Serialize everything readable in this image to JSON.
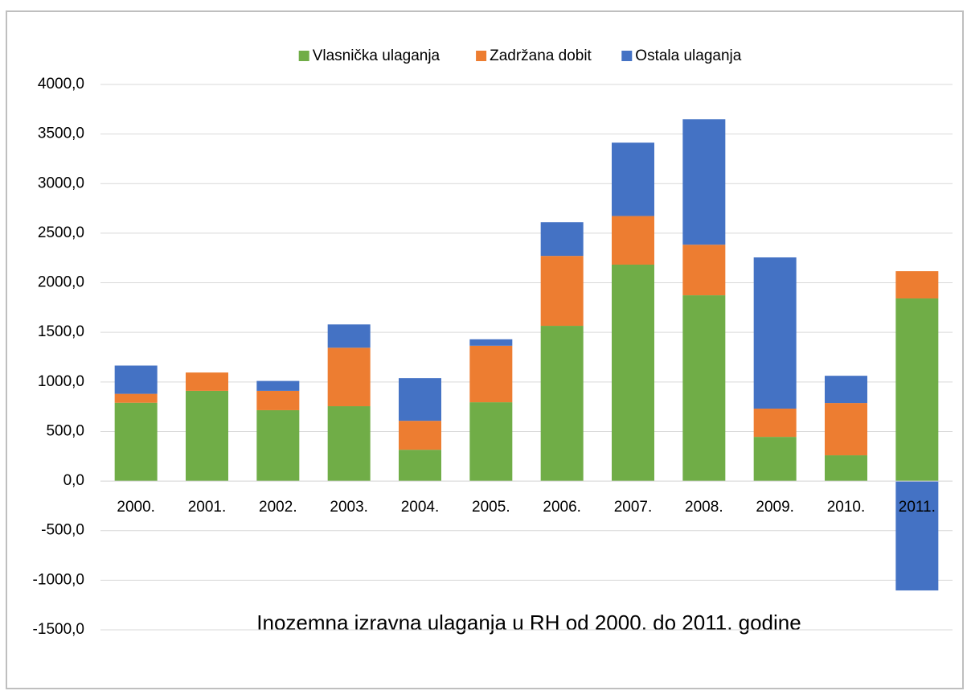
{
  "chart_data": {
    "type": "stacked_bar",
    "title": "Inozemna izravna ulaganja u RH od 2000. do 2011. godine",
    "categories": [
      "2000.",
      "2001.",
      "2002.",
      "2003.",
      "2004.",
      "2005.",
      "2006.",
      "2007.",
      "2008.",
      "2009.",
      "2010.",
      "2011."
    ],
    "series": [
      {
        "name": "Vlasnička ulaganja",
        "color": "#70ad47",
        "values": [
          790,
          910,
          715,
          755,
          316,
          795,
          1566,
          2183,
          1874,
          446,
          260,
          1842
        ]
      },
      {
        "name": "Zadržana dobit",
        "color": "#ed7d31",
        "values": [
          90,
          185,
          195,
          590,
          292,
          570,
          705,
          490,
          510,
          285,
          527,
          275
        ]
      },
      {
        "name": "Ostala ulaganja",
        "color": "#4472c4",
        "values": [
          285,
          0,
          100,
          235,
          430,
          65,
          340,
          740,
          1265,
          1525,
          275,
          -1103
        ]
      }
    ],
    "ylim": [
      -1500,
      4000
    ],
    "yticks": [
      {
        "value": -1500,
        "label": "-1500,0"
      },
      {
        "value": -1000,
        "label": "-1000,0"
      },
      {
        "value": -500,
        "label": "-500,0"
      },
      {
        "value": 0,
        "label": "0,0"
      },
      {
        "value": 500,
        "label": "500,0"
      },
      {
        "value": 1000,
        "label": "1000,0"
      },
      {
        "value": 1500,
        "label": "1500,0"
      },
      {
        "value": 2000,
        "label": "2000,0"
      },
      {
        "value": 2500,
        "label": "2500,0"
      },
      {
        "value": 3000,
        "label": "3000,0"
      },
      {
        "value": 3500,
        "label": "3500,0"
      },
      {
        "value": 4000,
        "label": "4000,0"
      }
    ],
    "grid": true,
    "legend": "top"
  }
}
